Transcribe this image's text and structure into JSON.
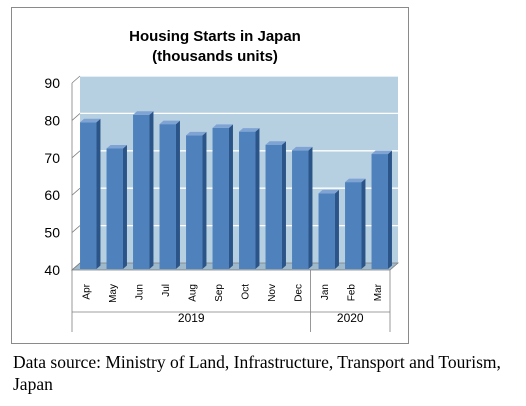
{
  "chart_data": {
    "type": "bar",
    "title_lines": [
      "Housing Starts in Japan",
      "(thousands units)"
    ],
    "categories": [
      "Apr",
      "May",
      "Jun",
      "Jul",
      "Aug",
      "Sep",
      "Oct",
      "Nov",
      "Dec",
      "Jan",
      "Feb",
      "Mar"
    ],
    "groups": [
      {
        "label": "2019",
        "categories": [
          "Apr",
          "May",
          "Jun",
          "Jul",
          "Aug",
          "Sep",
          "Oct",
          "Nov",
          "Dec"
        ]
      },
      {
        "label": "2020",
        "categories": [
          "Jan",
          "Feb",
          "Mar"
        ]
      }
    ],
    "values": [
      79.5,
      72.5,
      81.5,
      79,
      76,
      78,
      77,
      73.5,
      72,
      60.5,
      63.5,
      71
    ],
    "ylim": [
      40,
      90
    ],
    "yticks": [
      40,
      50,
      60,
      70,
      80,
      90
    ],
    "grid": true,
    "style_3d": true,
    "bar_color": "#4f81bd",
    "bar_side_color": "#2b5589",
    "bar_top_color": "#7fa4d4",
    "wall_color": "#b6d0e2",
    "floor_color": "#9fb9cc",
    "grid_color": "#ffffff"
  },
  "footnote": "Data source: Ministry of Land, Infrastructure, Transport and Tourism, Japan"
}
